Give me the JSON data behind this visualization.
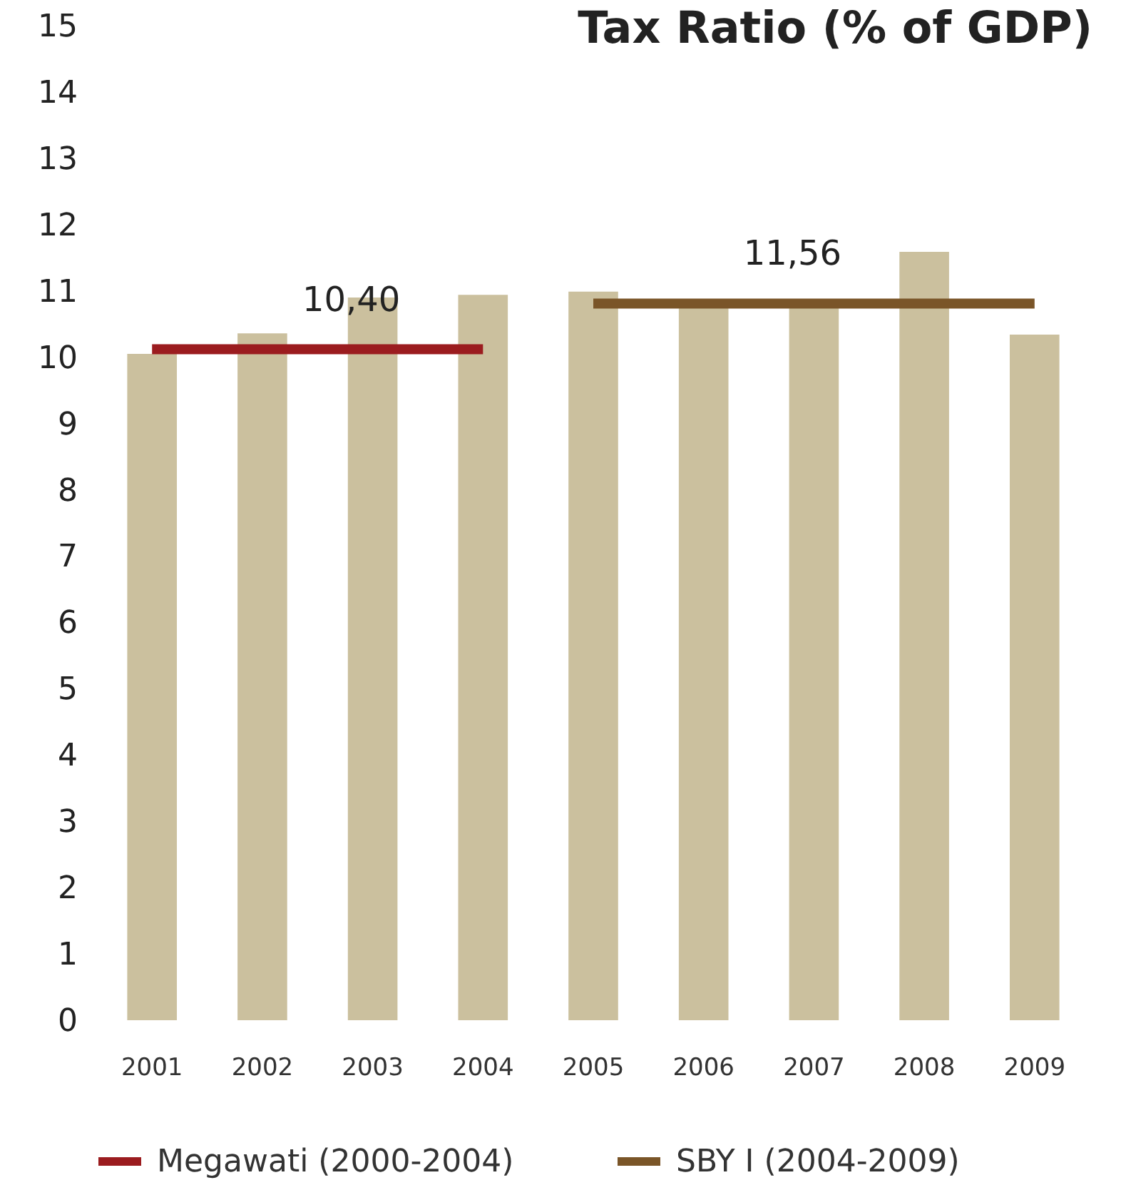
{
  "chart_data": {
    "type": "bar",
    "title": "Tax Ratio (% of GDP)",
    "categories": [
      "2001",
      "2002",
      "2003",
      "2004",
      "2005",
      "2006",
      "2007",
      "2008",
      "2009"
    ],
    "series": [
      {
        "color": "#cbc09e",
        "values": [
          10.05,
          10.36,
          10.9,
          10.94,
          10.99,
          10.8,
          10.8,
          11.59,
          10.34
        ]
      },
      {
        "name": "Megawati (2000-2004)",
        "type": "line",
        "color": "#9b1c1f",
        "values": [
          10.12,
          10.12,
          10.12,
          10.12,
          null,
          null,
          null,
          null,
          null
        ]
      },
      {
        "name": "SBY I (2004-2009)",
        "type": "line",
        "color": "#7a5528",
        "values": [
          null,
          null,
          null,
          null,
          10.81,
          10.81,
          10.81,
          10.81,
          10.81
        ]
      }
    ],
    "annotations": [
      "10,40",
      "11,56"
    ],
    "ylim": [
      0,
      15
    ],
    "yticks": [
      0,
      1,
      2,
      3,
      4,
      5,
      6,
      7,
      8,
      9,
      10,
      11,
      12,
      13,
      14,
      15
    ],
    "grid": false,
    "legend": "bottom"
  }
}
